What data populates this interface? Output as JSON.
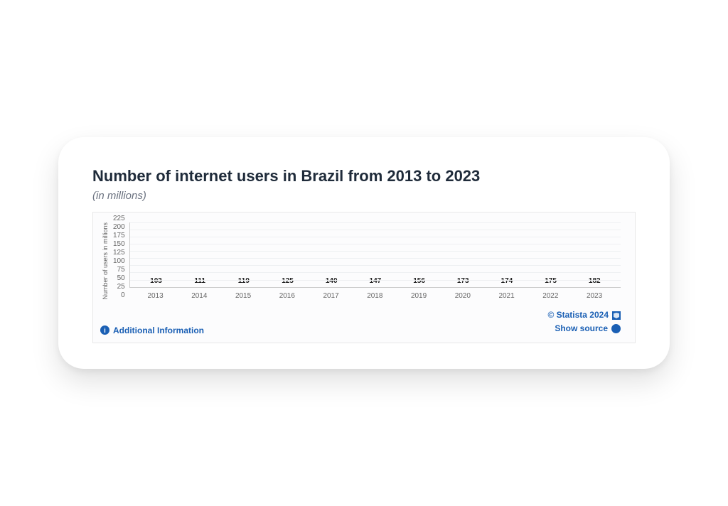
{
  "title": "Number of internet users in Brazil from 2013 to 2023",
  "subtitle": "(in millions)",
  "chart": {
    "type": "bar",
    "ylabel": "Number of users in millions",
    "ylim": [
      0,
      225
    ],
    "ytick_step": 25,
    "yticks": [
      225,
      200,
      175,
      150,
      125,
      100,
      75,
      50,
      25,
      0
    ],
    "categories": [
      "2013",
      "2014",
      "2015",
      "2016",
      "2017",
      "2018",
      "2019",
      "2020",
      "2021",
      "2022",
      "2023"
    ],
    "values": [
      103,
      111,
      119,
      125,
      140,
      147,
      156,
      173,
      174,
      175,
      182
    ],
    "bar_color": "#1f6bd6",
    "grid_color": "#eef0f2",
    "axis_color": "#cccccc",
    "background_color": "#fcfcfd",
    "label_fontsize": 10,
    "value_label_fontsize": 10,
    "bar_width": 0.7
  },
  "footer": {
    "additional_info": "Additional Information",
    "copyright": "© Statista 2024",
    "show_source": "Show source"
  }
}
